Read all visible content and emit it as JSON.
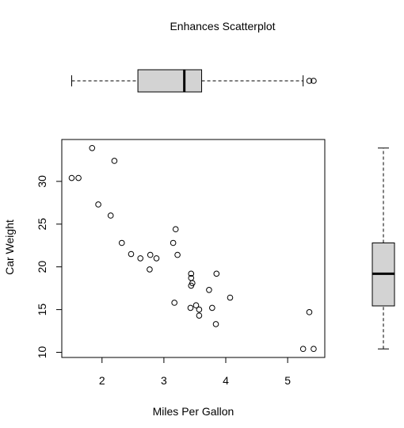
{
  "chart_data": [
    {
      "type": "scatter",
      "title": "Enhances Scatterplot",
      "xlabel": "Miles Per Gallon",
      "ylabel": "Car Weight",
      "xlim": [
        1.35,
        5.6
      ],
      "ylim": [
        9.4,
        34.9
      ],
      "xticks": [
        2,
        3,
        4,
        5
      ],
      "yticks": [
        10,
        15,
        20,
        25,
        30
      ],
      "grid": false,
      "points": [
        {
          "x": 1.51,
          "y": 30.4
        },
        {
          "x": 1.62,
          "y": 30.4
        },
        {
          "x": 1.84,
          "y": 33.9
        },
        {
          "x": 1.94,
          "y": 27.3
        },
        {
          "x": 2.14,
          "y": 26.0
        },
        {
          "x": 2.2,
          "y": 32.4
        },
        {
          "x": 2.32,
          "y": 22.8
        },
        {
          "x": 2.47,
          "y": 21.5
        },
        {
          "x": 2.62,
          "y": 21.0
        },
        {
          "x": 2.77,
          "y": 19.7
        },
        {
          "x": 2.78,
          "y": 21.4
        },
        {
          "x": 2.88,
          "y": 21.0
        },
        {
          "x": 3.15,
          "y": 22.8
        },
        {
          "x": 3.17,
          "y": 15.8
        },
        {
          "x": 3.19,
          "y": 24.4
        },
        {
          "x": 3.22,
          "y": 21.4
        },
        {
          "x": 3.43,
          "y": 15.2
        },
        {
          "x": 3.44,
          "y": 17.8
        },
        {
          "x": 3.44,
          "y": 18.7
        },
        {
          "x": 3.44,
          "y": 19.2
        },
        {
          "x": 3.46,
          "y": 18.1
        },
        {
          "x": 3.52,
          "y": 15.5
        },
        {
          "x": 3.57,
          "y": 14.3
        },
        {
          "x": 3.57,
          "y": 15.0
        },
        {
          "x": 3.73,
          "y": 17.3
        },
        {
          "x": 3.78,
          "y": 15.2
        },
        {
          "x": 3.84,
          "y": 13.3
        },
        {
          "x": 3.85,
          "y": 19.2
        },
        {
          "x": 4.07,
          "y": 16.4
        },
        {
          "x": 5.25,
          "y": 10.4
        },
        {
          "x": 5.35,
          "y": 14.7
        },
        {
          "x": 5.42,
          "y": 10.4
        }
      ]
    },
    {
      "type": "boxplot",
      "orientation": "horizontal",
      "variable": "x",
      "whisker_low": 1.51,
      "q1": 2.58,
      "median": 3.33,
      "q3": 3.61,
      "whisker_high": 5.25,
      "outliers": [
        5.35,
        5.42
      ]
    },
    {
      "type": "boxplot",
      "orientation": "vertical",
      "variable": "y",
      "whisker_low": 10.4,
      "q1": 15.43,
      "median": 19.2,
      "q3": 22.8,
      "whisker_high": 33.9,
      "outliers": []
    }
  ]
}
